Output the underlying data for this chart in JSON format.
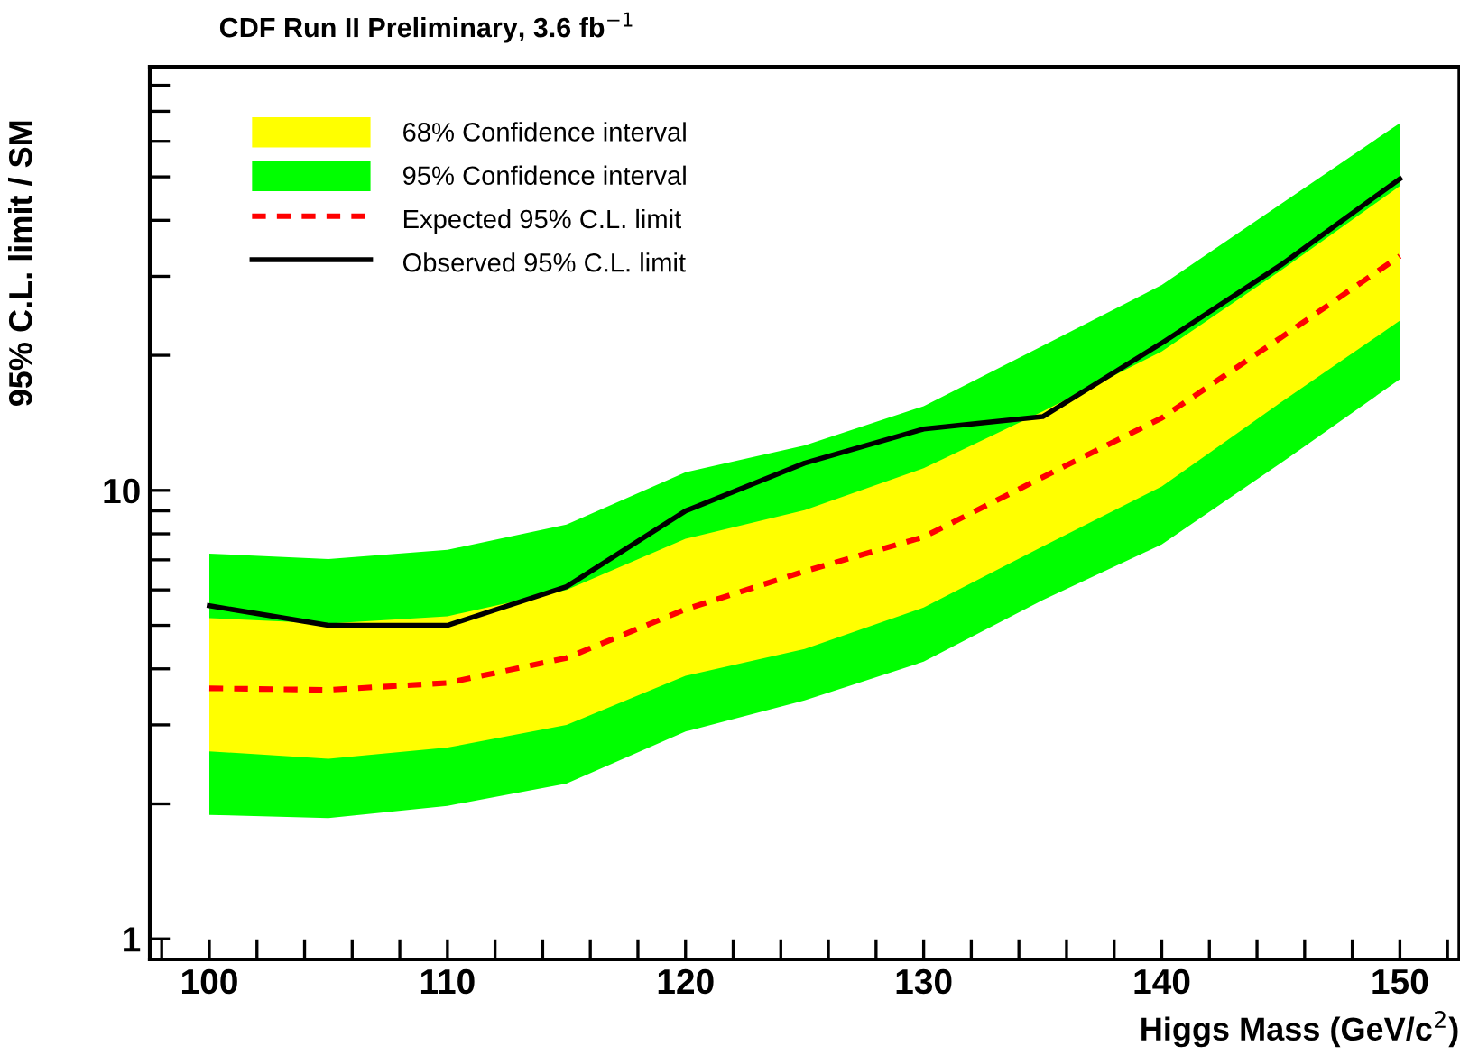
{
  "chart_data": {
    "type": "line",
    "title": "CDF Run II Preliminary, 3.6 fb$^{−1}$",
    "xlabel": "Higgs Mass (GeV/c$^{2}$)",
    "ylabel": "95% C.L. limit / SM",
    "x": [
      100,
      105,
      110,
      115,
      120,
      125,
      130,
      135,
      140,
      145,
      150
    ],
    "series": [
      {
        "name": "68% Confidence interval",
        "type": "area",
        "color": "#ffff00",
        "values": [
          null,
          null,
          null,
          null,
          null,
          null,
          null,
          null,
          null,
          null,
          null
        ],
        "lower": [
          2.62,
          2.52,
          2.67,
          3.0,
          3.86,
          4.43,
          5.48,
          7.5,
          10.2,
          15.7,
          23.9
        ],
        "upper": [
          5.19,
          5.05,
          5.24,
          6.0,
          7.8,
          9.03,
          11.2,
          15.0,
          20.4,
          30.9,
          47.7
        ]
      },
      {
        "name": "95% Confidence interval",
        "type": "area",
        "color": "#00ff00",
        "values": [
          null,
          null,
          null,
          null,
          null,
          null,
          null,
          null,
          null,
          null,
          null
        ],
        "lower": [
          1.89,
          1.86,
          1.98,
          2.22,
          2.9,
          3.4,
          4.15,
          5.69,
          7.58,
          11.5,
          17.7
        ],
        "upper": [
          7.23,
          7.03,
          7.37,
          8.39,
          10.97,
          12.6,
          15.4,
          21.0,
          28.7,
          43.5,
          65.9
        ]
      },
      {
        "name": "Expected 95% C.L. limit",
        "color": "#ff0000",
        "line_style": "dashed",
        "values": [
          3.62,
          3.59,
          3.72,
          4.23,
          5.43,
          6.6,
          7.87,
          10.7,
          14.5,
          21.9,
          33.3
        ]
      },
      {
        "name": "Observed 95% C.L. limit",
        "color": "#000000",
        "line_style": "solid",
        "values": [
          5.53,
          5.0,
          5.0,
          6.1,
          9.0,
          11.5,
          13.7,
          14.6,
          21.3,
          31.8,
          49.5
        ]
      }
    ],
    "log": "y",
    "xlim": [
      97.5,
      152.5
    ],
    "ylim": [
      0.9,
      88
    ],
    "xticks": [
      {
        "value": 98,
        "label": null
      },
      100,
      {
        "value": 102,
        "label": null
      },
      {
        "value": 104,
        "label": null
      },
      {
        "value": 106,
        "label": null
      },
      {
        "value": 108,
        "label": null
      },
      110,
      {
        "value": 112,
        "label": null
      },
      {
        "value": 114,
        "label": null
      },
      {
        "value": 116,
        "label": null
      },
      {
        "value": 118,
        "label": null
      },
      120,
      {
        "value": 122,
        "label": null
      },
      {
        "value": 124,
        "label": null
      },
      {
        "value": 126,
        "label": null
      },
      {
        "value": 128,
        "label": null
      },
      130,
      {
        "value": 132,
        "label": null
      },
      {
        "value": 134,
        "label": null
      },
      {
        "value": 136,
        "label": null
      },
      {
        "value": 138,
        "label": null
      },
      140,
      {
        "value": 142,
        "label": null
      },
      {
        "value": 144,
        "label": null
      },
      {
        "value": 146,
        "label": null
      },
      {
        "value": 148,
        "label": null
      },
      150,
      {
        "value": 152,
        "label": null
      }
    ],
    "yticks": [
      1,
      {
        "value": 2,
        "label": null
      },
      {
        "value": 3,
        "label": null
      },
      {
        "value": 4,
        "label": null
      },
      {
        "value": 5,
        "label": null
      },
      {
        "value": 6,
        "label": null
      },
      {
        "value": 7,
        "label": null
      },
      {
        "value": 8,
        "label": null
      },
      {
        "value": 9,
        "label": null
      },
      10,
      {
        "value": 20,
        "label": null
      },
      {
        "value": 30,
        "label": null
      },
      {
        "value": 40,
        "label": null
      },
      {
        "value": 50,
        "label": null
      },
      {
        "value": 60,
        "label": null
      },
      {
        "value": 70,
        "label": null
      },
      {
        "value": 80,
        "label": null
      }
    ],
    "grid": false,
    "legend": "top left"
  }
}
